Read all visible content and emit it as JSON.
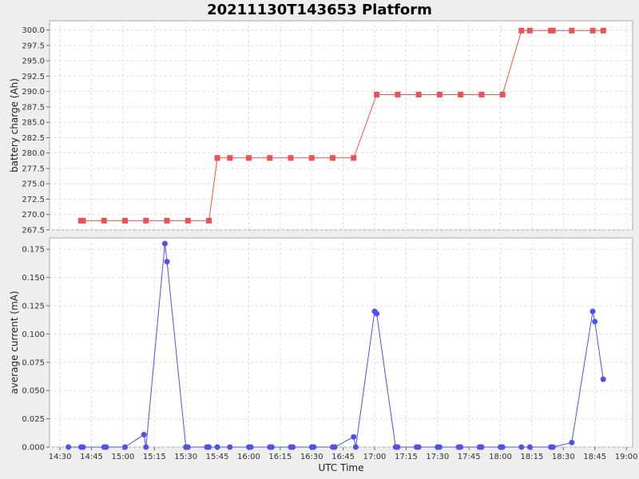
{
  "chart_data": {
    "title": "20211130T143653 Platform",
    "xlabel": "UTC Time",
    "x_ticks": [
      "14:30",
      "14:45",
      "15:00",
      "15:15",
      "15:30",
      "15:45",
      "16:00",
      "16:15",
      "16:30",
      "16:45",
      "17:00",
      "17:15",
      "17:30",
      "17:45",
      "18:00",
      "18:15",
      "18:30",
      "18:45",
      "19:00"
    ],
    "xlim": [
      "14:25",
      "19:03"
    ],
    "grid": true,
    "panels": [
      {
        "type": "line",
        "ylabel": "battery charge (Ah)",
        "ylim": [
          267.5,
          301.5
        ],
        "y_ticks": [
          "267.5",
          "270.0",
          "272.5",
          "275.0",
          "277.5",
          "280.0",
          "282.5",
          "285.0",
          "287.5",
          "290.0",
          "292.5",
          "295.0",
          "297.5",
          "300.0"
        ],
        "color": "#f05050",
        "marker": "square",
        "series": [
          {
            "x": [
              "14:40",
              "14:41",
              "14:51",
              "15:01",
              "15:11",
              "15:21",
              "15:31",
              "15:41",
              "15:45",
              "15:51",
              "16:00",
              "16:10",
              "16:20",
              "16:30",
              "16:40",
              "16:50",
              "17:01",
              "17:11",
              "17:21",
              "17:31",
              "17:41",
              "17:51",
              "18:01",
              "18:10",
              "18:14",
              "18:24",
              "18:25",
              "18:34",
              "18:44",
              "18:49"
            ],
            "y": [
              269.0,
              269.0,
              269.0,
              269.0,
              269.0,
              269.0,
              269.0,
              269.0,
              279.2,
              279.2,
              279.2,
              279.2,
              279.2,
              279.2,
              279.2,
              279.2,
              289.5,
              289.5,
              289.5,
              289.5,
              289.5,
              289.5,
              289.5,
              299.9,
              299.9,
              299.9,
              299.9,
              299.9,
              299.9,
              299.9
            ]
          }
        ]
      },
      {
        "type": "line",
        "ylabel": "average current (mA)",
        "ylim": [
          0.0,
          0.185
        ],
        "y_ticks": [
          "0.000",
          "0.025",
          "0.050",
          "0.075",
          "0.100",
          "0.125",
          "0.150",
          "0.175"
        ],
        "color": "#5050f0",
        "marker": "circle",
        "series": [
          {
            "x": [
              "14:34",
              "14:40",
              "14:41",
              "14:51",
              "14:52",
              "15:01",
              "15:10",
              "15:11",
              "15:20",
              "15:21",
              "15:30",
              "15:31",
              "15:40",
              "15:41",
              "15:45",
              "15:51",
              "16:00",
              "16:01",
              "16:10",
              "16:11",
              "16:20",
              "16:21",
              "16:30",
              "16:31",
              "16:40",
              "16:41",
              "16:50",
              "16:51",
              "17:00",
              "17:01",
              "17:10",
              "17:11",
              "17:20",
              "17:21",
              "17:30",
              "17:31",
              "17:40",
              "17:41",
              "17:50",
              "17:51",
              "18:00",
              "18:01",
              "18:10",
              "18:14",
              "18:24",
              "18:25",
              "18:34",
              "18:44",
              "18:45",
              "18:49"
            ],
            "y": [
              0,
              0,
              0,
              0,
              0,
              0,
              0.011,
              0,
              0.18,
              0.164,
              0,
              0,
              0,
              0,
              0,
              0,
              0,
              0,
              0,
              0,
              0,
              0,
              0,
              0,
              0,
              0,
              0.009,
              0,
              0.12,
              0.118,
              0,
              0,
              0,
              0,
              0,
              0,
              0,
              0,
              0,
              0,
              0,
              0,
              0,
              0,
              0,
              0,
              0.004,
              0.12,
              0.111,
              0.06
            ]
          }
        ]
      }
    ]
  }
}
